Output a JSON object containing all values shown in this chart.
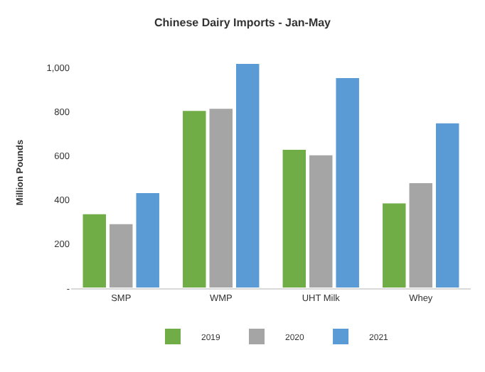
{
  "chart_data": {
    "type": "bar",
    "title": "Chinese Dairy Imports - Jan-May",
    "ylabel": "Million Pounds",
    "categories": [
      "SMP",
      "WMP",
      "UHT Milk",
      "Whey"
    ],
    "series": [
      {
        "name": "2019",
        "color": "#70ad47",
        "values": [
          339,
          808,
          631,
          388
        ]
      },
      {
        "name": "2020",
        "color": "#a5a5a5",
        "values": [
          294,
          817,
          606,
          480
        ]
      },
      {
        "name": "2021",
        "color": "#5b9bd5",
        "values": [
          435,
          1021,
          957,
          751
        ]
      }
    ],
    "ylim": [
      0,
      1050
    ],
    "yticks": [
      {
        "value": 0,
        "label": "-"
      },
      200,
      400,
      600,
      800,
      {
        "value": 1000,
        "label": "1,000"
      }
    ],
    "grid": false,
    "legend": "bottom"
  }
}
